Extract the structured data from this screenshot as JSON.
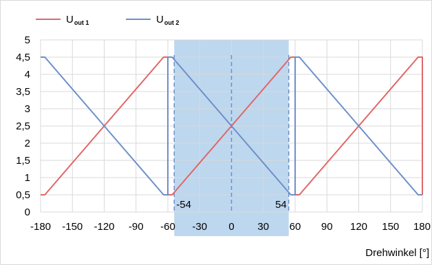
{
  "chart_data": {
    "type": "line",
    "xlabel": "Drehwinkel [°]",
    "ylabel": "",
    "xlim": [
      -180,
      180
    ],
    "ylim": [
      0,
      5
    ],
    "x_ticks": [
      -180,
      -150,
      -120,
      -90,
      -60,
      -30,
      0,
      30,
      60,
      90,
      120,
      150,
      180
    ],
    "x_tick_labels": [
      "-180",
      "-150",
      "-120",
      "-90",
      "-60",
      "-30",
      "0",
      "30",
      "60",
      "90",
      "120",
      "150",
      "180"
    ],
    "y_ticks": [
      0,
      0.5,
      1,
      1.5,
      2,
      2.5,
      3,
      3.5,
      4,
      4.5,
      5
    ],
    "y_tick_labels": [
      "0",
      "0,5",
      "1",
      "1,5",
      "2",
      "2,5",
      "3",
      "3,5",
      "4",
      "4,5",
      "5"
    ],
    "grid": true,
    "legend": "top-left",
    "highlight_region": {
      "x": [
        -54,
        54
      ],
      "color": "#bdd7ee"
    },
    "markers": [
      {
        "x": -54,
        "label": "-54"
      },
      {
        "x": 0,
        "label": ""
      },
      {
        "x": 54,
        "label": "54"
      }
    ],
    "series": [
      {
        "name": "U",
        "subscript": "out 1",
        "color": "#e06666",
        "x": [
          -180,
          -176,
          -64,
          -60,
          -60,
          -56,
          56,
          60,
          60,
          64,
          176,
          180,
          180
        ],
        "y": [
          0.5,
          0.5,
          4.5,
          4.5,
          0.5,
          0.5,
          4.5,
          4.5,
          0.5,
          0.5,
          4.5,
          4.5,
          0.5
        ]
      },
      {
        "name": "U",
        "subscript": "out 2",
        "color": "#6d8fc9",
        "x": [
          -180,
          -176,
          -64,
          -60,
          -60,
          -56,
          56,
          60,
          60,
          64,
          176,
          180
        ],
        "y": [
          4.5,
          4.5,
          0.5,
          0.5,
          4.5,
          4.5,
          0.5,
          0.5,
          4.5,
          4.5,
          0.5,
          0.5
        ]
      }
    ]
  }
}
